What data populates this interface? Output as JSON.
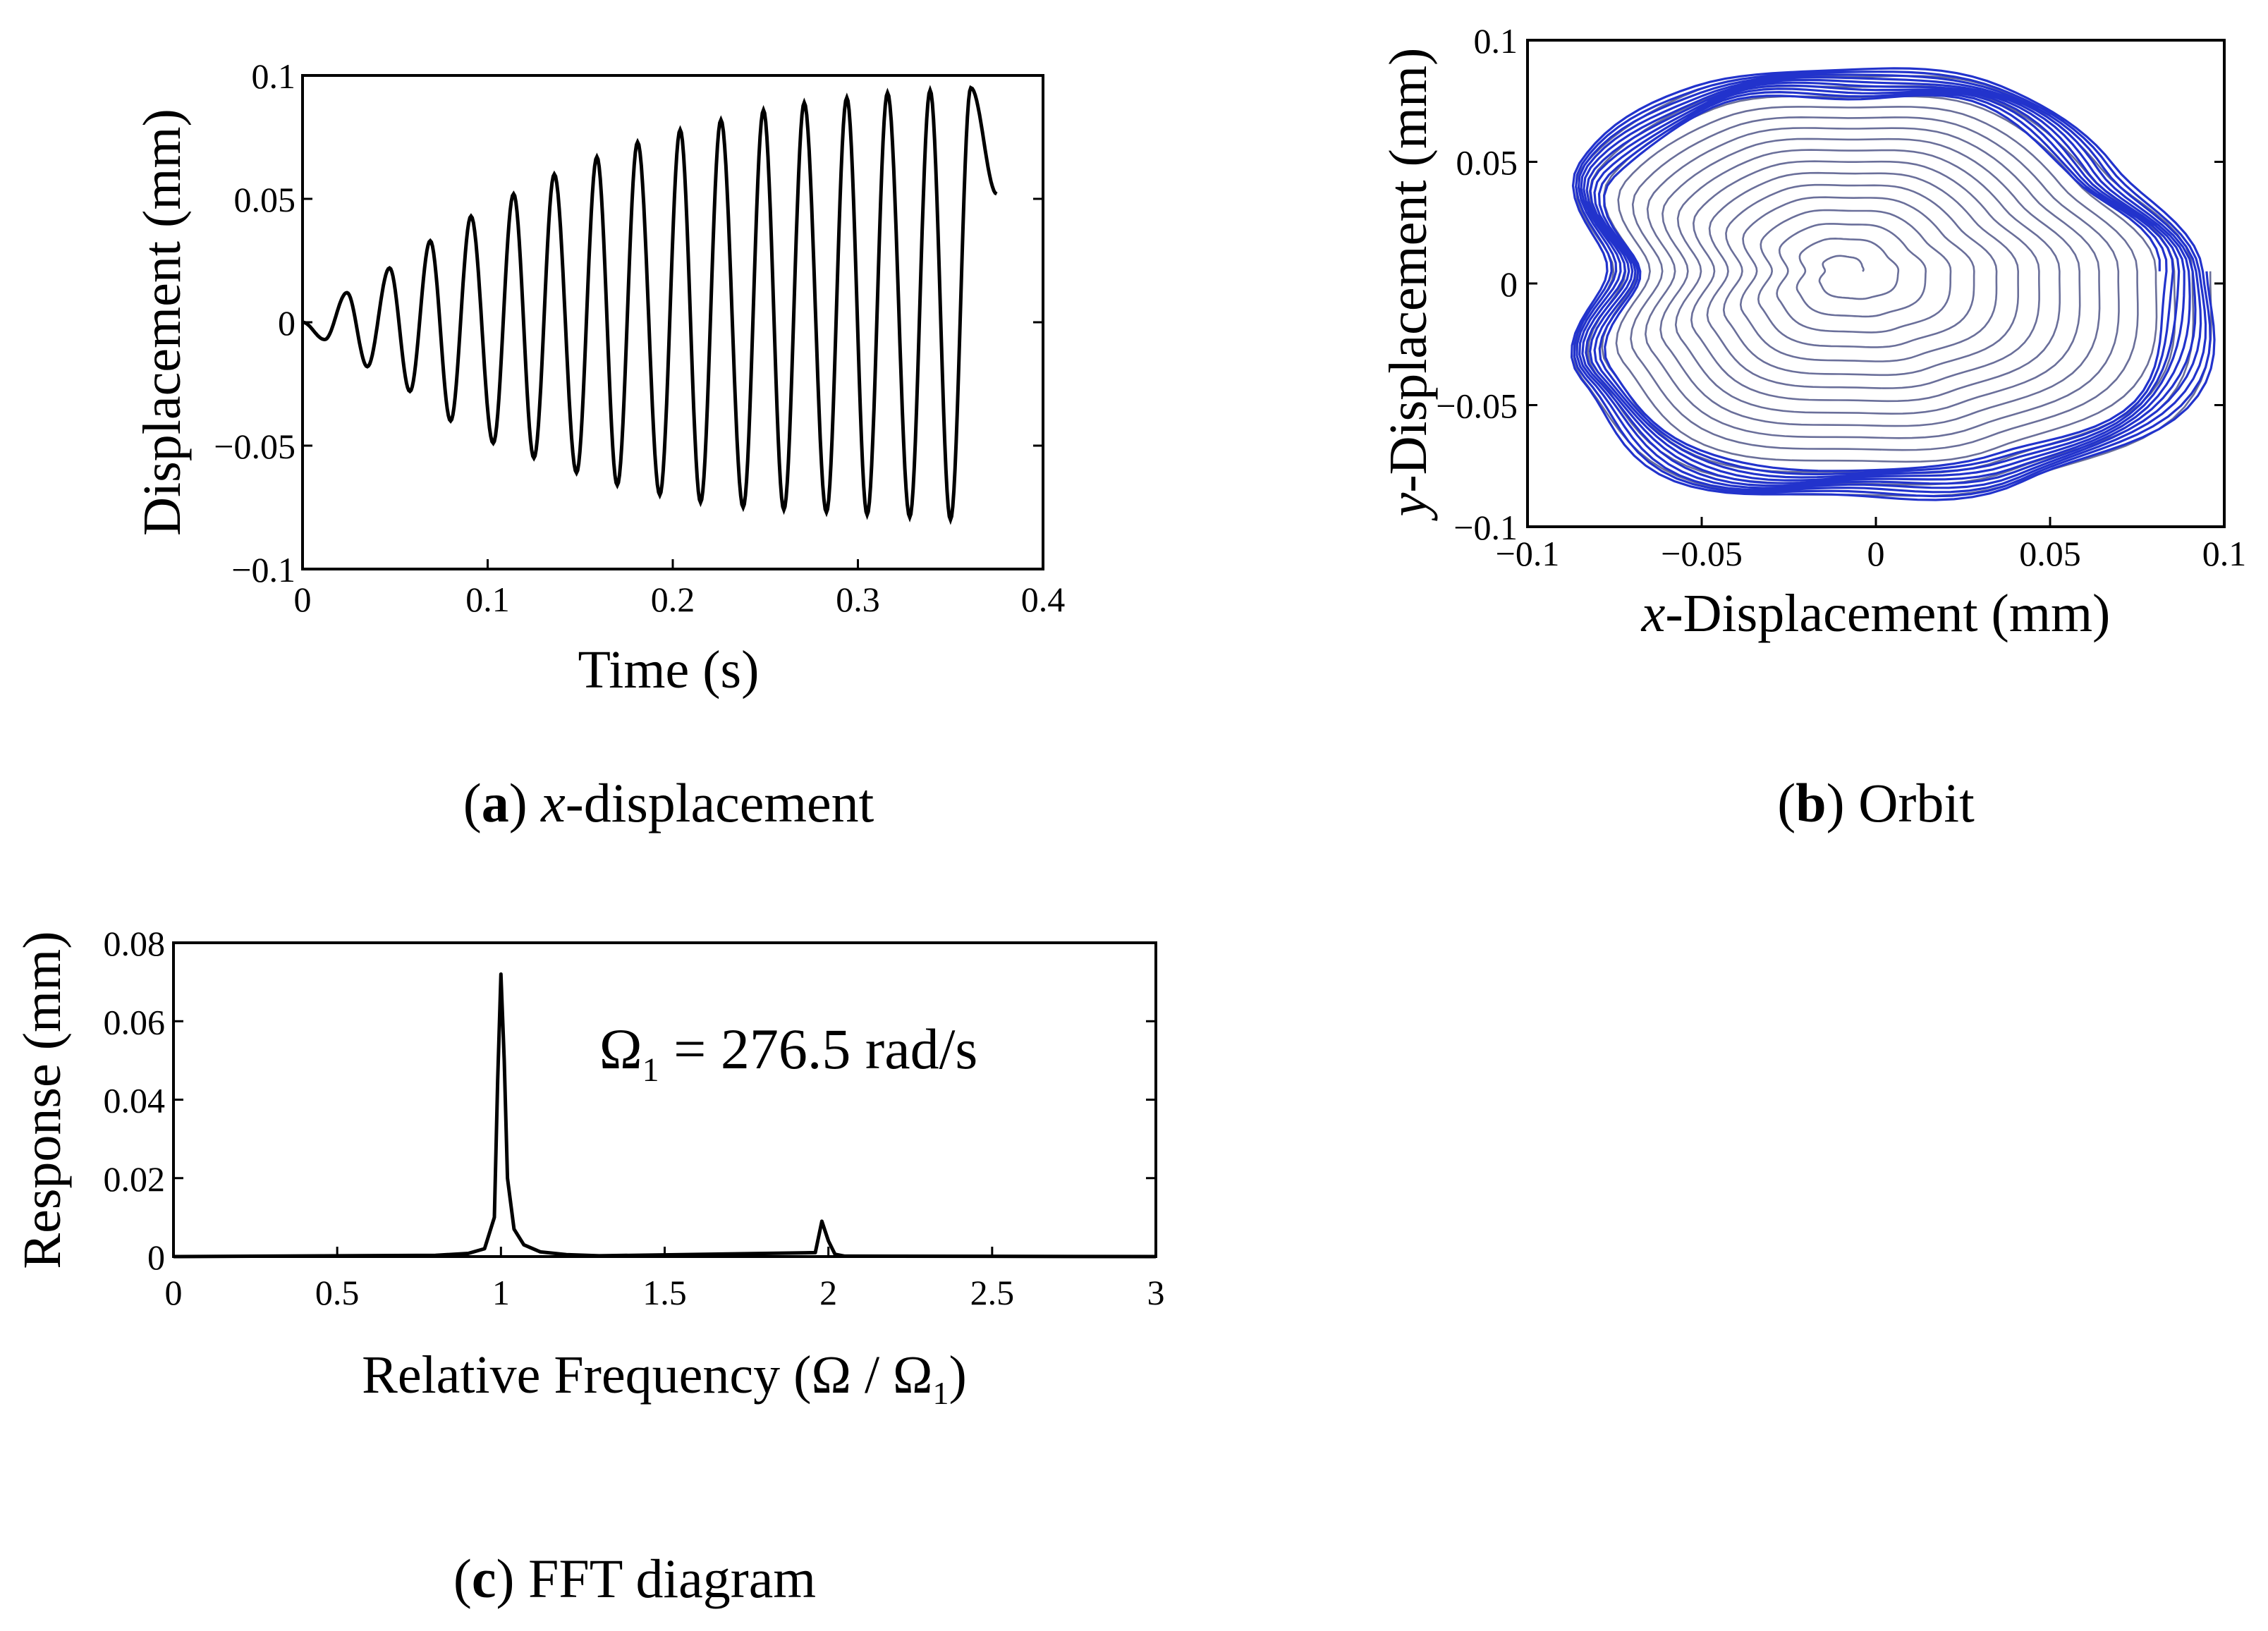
{
  "chart_data": [
    {
      "id": "a",
      "type": "line",
      "caption": {
        "letter": "a",
        "text": "x-displacement"
      },
      "xlabel": "Time (s)",
      "ylabel": "Displacement (mm)",
      "xlim": [
        0,
        0.4
      ],
      "ylim": [
        -0.1,
        0.1
      ],
      "xticks": [
        "0",
        "0.1",
        "0.2",
        "0.3",
        "0.4"
      ],
      "yticks": [
        "−0.1",
        "−0.05",
        "0",
        "0.05",
        "0.1"
      ],
      "series": [
        {
          "name": "x-displacement",
          "color": "#000000",
          "t_end": 0.375,
          "peaks": [
            {
              "t": 0.024,
              "y": 0.012
            },
            {
              "t": 0.047,
              "y": 0.022
            },
            {
              "t": 0.069,
              "y": 0.033
            },
            {
              "t": 0.091,
              "y": 0.043
            },
            {
              "t": 0.114,
              "y": 0.052
            },
            {
              "t": 0.136,
              "y": 0.06
            },
            {
              "t": 0.159,
              "y": 0.067
            },
            {
              "t": 0.181,
              "y": 0.073
            },
            {
              "t": 0.204,
              "y": 0.078
            },
            {
              "t": 0.226,
              "y": 0.082
            },
            {
              "t": 0.249,
              "y": 0.086
            },
            {
              "t": 0.271,
              "y": 0.089
            },
            {
              "t": 0.294,
              "y": 0.091
            },
            {
              "t": 0.316,
              "y": 0.093
            },
            {
              "t": 0.339,
              "y": 0.094
            },
            {
              "t": 0.361,
              "y": 0.095
            }
          ],
          "troughs": [
            {
              "t": 0.012,
              "y": -0.007
            },
            {
              "t": 0.035,
              "y": -0.018
            },
            {
              "t": 0.058,
              "y": -0.028
            },
            {
              "t": 0.08,
              "y": -0.04
            },
            {
              "t": 0.103,
              "y": -0.049
            },
            {
              "t": 0.125,
              "y": -0.055
            },
            {
              "t": 0.148,
              "y": -0.061
            },
            {
              "t": 0.17,
              "y": -0.066
            },
            {
              "t": 0.193,
              "y": -0.07
            },
            {
              "t": 0.215,
              "y": -0.073
            },
            {
              "t": 0.238,
              "y": -0.075
            },
            {
              "t": 0.26,
              "y": -0.076
            },
            {
              "t": 0.283,
              "y": -0.077
            },
            {
              "t": 0.305,
              "y": -0.078
            },
            {
              "t": 0.328,
              "y": -0.079
            },
            {
              "t": 0.35,
              "y": -0.08
            }
          ]
        }
      ]
    },
    {
      "id": "b",
      "type": "line",
      "caption": {
        "letter": "b",
        "text": "Orbit"
      },
      "xlabel": "x-Displacement (mm)",
      "ylabel": "y-Displacement (mm)",
      "xlim": [
        -0.1,
        0.1
      ],
      "ylim": [
        -0.1,
        0.1
      ],
      "xticks": [
        "−0.1",
        "−0.05",
        "0",
        "0.05",
        "0.1"
      ],
      "yticks": [
        "−0.1",
        "−0.05",
        "0",
        "0.05",
        "0.1"
      ],
      "series": [
        {
          "name": "orbit",
          "color": "#6a6f9a",
          "outer_color": "#2233cc",
          "center": {
            "x": -0.008,
            "y": 0.005
          },
          "shape": [
            {
              "angle_deg": 0,
              "r": 0.104
            },
            {
              "angle_deg": 30,
              "r": 0.088
            },
            {
              "angle_deg": 60,
              "r": 0.09
            },
            {
              "angle_deg": 90,
              "r": 0.083
            },
            {
              "angle_deg": 120,
              "r": 0.089
            },
            {
              "angle_deg": 150,
              "r": 0.09
            },
            {
              "angle_deg": 180,
              "r": 0.069
            },
            {
              "angle_deg": 210,
              "r": 0.09
            },
            {
              "angle_deg": 240,
              "r": 0.099
            },
            {
              "angle_deg": 270,
              "r": 0.093
            },
            {
              "angle_deg": 300,
              "r": 0.1
            },
            {
              "angle_deg": 330,
              "r": 0.112
            }
          ],
          "turns": 16
        }
      ]
    },
    {
      "id": "c",
      "type": "line",
      "caption": {
        "letter": "c",
        "text": "FFT diagram"
      },
      "xlabel": "Relative Frequency (Ω / Ω₁)",
      "ylabel": "Response (mm)",
      "xlim": [
        0,
        3
      ],
      "ylim": [
        0,
        0.08
      ],
      "xticks": [
        "0",
        "0.5",
        "1",
        "1.5",
        "2",
        "2.5",
        "3"
      ],
      "yticks": [
        "0",
        "0.02",
        "0.04",
        "0.06",
        "0.08"
      ],
      "annotation": "Ω₁ = 276.5 rad/s",
      "series": [
        {
          "name": "FFT",
          "color": "#000000",
          "x": [
            0,
            0.8,
            0.9,
            0.95,
            0.98,
            0.99,
            1.0,
            1.01,
            1.02,
            1.04,
            1.07,
            1.12,
            1.2,
            1.3,
            1.96,
            1.98,
            2.0,
            2.02,
            2.05,
            3.0
          ],
          "y": [
            0,
            0.0003,
            0.0008,
            0.002,
            0.01,
            0.045,
            0.072,
            0.05,
            0.02,
            0.007,
            0.003,
            0.0012,
            0.0005,
            0.0002,
            0.001,
            0.009,
            0.004,
            0.0006,
            0.0001,
            0
          ]
        }
      ]
    }
  ]
}
